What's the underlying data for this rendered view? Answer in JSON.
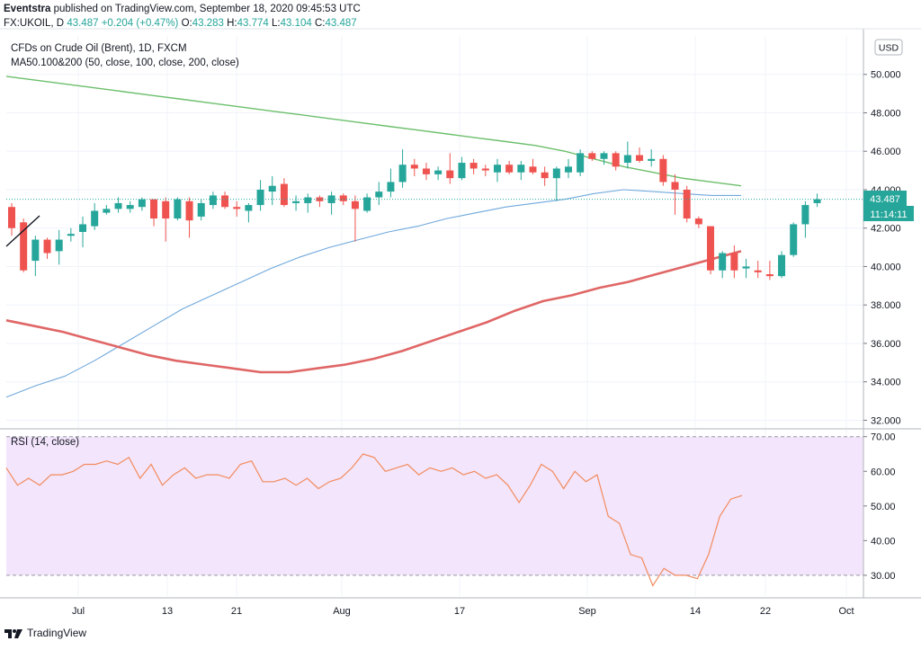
{
  "header": {
    "publisher": "Eventstra",
    "published_line": "published on TradingView.com, September 18, 2020 09:45:53 UTC",
    "symbol": "FX:UKOIL, D",
    "close_value": "43.487",
    "change": "+0.204 (+0.47%)",
    "open_label": "O:",
    "open": "43.283",
    "high_label": "H:",
    "high": "43.774",
    "low_label": "L:",
    "low": "43.104",
    "close_label": "C:",
    "close": "43.487"
  },
  "legend": {
    "series_title": "CFDs on Crude Oil (Brent), 1D, FXCM",
    "ma_title": "MA50.100&200 (50, close, 100, close, 200, close)",
    "rsi_title": "RSI (14, close)",
    "currency": "USD"
  },
  "price_tag": {
    "value": "43.487",
    "timer": "11:14:11"
  },
  "footer": {
    "brand": "TradingView"
  },
  "colors": {
    "up": "#26a69a",
    "down": "#ef5350",
    "ma50": "#6fa8dc",
    "ma100": "#6cbf6c",
    "ma200": "#e06666",
    "rsi": "#f28b5e",
    "rsi_band": "#f3e5fb"
  },
  "chart_data": [
    {
      "type": "candlestick",
      "title": "CFDs on Crude Oil (Brent), 1D, FXCM",
      "ylim": [
        31.6,
        52.0
      ],
      "y_ticks": [
        "32.000",
        "34.000",
        "36.000",
        "38.000",
        "40.000",
        "42.000",
        "44.000",
        "46.000",
        "48.000",
        "50.000"
      ],
      "x_tick_labels": [
        "Jul",
        "13",
        "21",
        "Aug",
        "17",
        "Sep",
        "14",
        "22",
        "Oct"
      ],
      "candles": [
        {
          "o": 43.1,
          "h": 43.3,
          "l": 41.6,
          "c": 42.0
        },
        {
          "o": 42.3,
          "h": 42.5,
          "l": 39.7,
          "c": 39.8
        },
        {
          "o": 40.3,
          "h": 41.6,
          "l": 39.5,
          "c": 41.4
        },
        {
          "o": 41.4,
          "h": 41.5,
          "l": 40.4,
          "c": 40.7
        },
        {
          "o": 40.8,
          "h": 41.9,
          "l": 40.1,
          "c": 41.4
        },
        {
          "o": 41.6,
          "h": 42.0,
          "l": 41.3,
          "c": 41.7
        },
        {
          "o": 41.8,
          "h": 42.6,
          "l": 41.0,
          "c": 42.2
        },
        {
          "o": 42.1,
          "h": 43.3,
          "l": 41.9,
          "c": 42.9
        },
        {
          "o": 42.8,
          "h": 43.2,
          "l": 42.7,
          "c": 43.0
        },
        {
          "o": 43.0,
          "h": 43.6,
          "l": 42.8,
          "c": 43.3
        },
        {
          "o": 43.0,
          "h": 43.4,
          "l": 42.8,
          "c": 43.2
        },
        {
          "o": 43.1,
          "h": 43.6,
          "l": 42.9,
          "c": 43.5
        },
        {
          "o": 43.5,
          "h": 43.5,
          "l": 42.1,
          "c": 42.5
        },
        {
          "o": 43.4,
          "h": 43.6,
          "l": 41.3,
          "c": 42.5
        },
        {
          "o": 42.5,
          "h": 43.6,
          "l": 42.4,
          "c": 43.5
        },
        {
          "o": 43.4,
          "h": 43.6,
          "l": 41.5,
          "c": 42.4
        },
        {
          "o": 42.6,
          "h": 43.5,
          "l": 42.4,
          "c": 43.3
        },
        {
          "o": 43.2,
          "h": 43.9,
          "l": 43.0,
          "c": 43.7
        },
        {
          "o": 43.7,
          "h": 43.9,
          "l": 43.0,
          "c": 43.1
        },
        {
          "o": 43.1,
          "h": 43.4,
          "l": 42.6,
          "c": 43.0
        },
        {
          "o": 42.9,
          "h": 43.3,
          "l": 42.3,
          "c": 43.2
        },
        {
          "o": 43.2,
          "h": 44.5,
          "l": 42.9,
          "c": 44.0
        },
        {
          "o": 43.9,
          "h": 44.7,
          "l": 43.2,
          "c": 44.2
        },
        {
          "o": 44.3,
          "h": 44.6,
          "l": 43.1,
          "c": 43.2
        },
        {
          "o": 43.3,
          "h": 43.7,
          "l": 42.9,
          "c": 43.4
        },
        {
          "o": 43.3,
          "h": 43.8,
          "l": 42.8,
          "c": 43.6
        },
        {
          "o": 43.6,
          "h": 43.7,
          "l": 43.1,
          "c": 43.4
        },
        {
          "o": 43.3,
          "h": 43.9,
          "l": 42.7,
          "c": 43.7
        },
        {
          "o": 43.7,
          "h": 43.8,
          "l": 43.2,
          "c": 43.4
        },
        {
          "o": 43.4,
          "h": 43.7,
          "l": 41.3,
          "c": 43.0
        },
        {
          "o": 42.9,
          "h": 43.8,
          "l": 42.8,
          "c": 43.6
        },
        {
          "o": 43.6,
          "h": 44.4,
          "l": 43.2,
          "c": 43.9
        },
        {
          "o": 43.9,
          "h": 45.1,
          "l": 43.6,
          "c": 44.4
        },
        {
          "o": 44.4,
          "h": 46.1,
          "l": 44.1,
          "c": 45.3
        },
        {
          "o": 45.3,
          "h": 45.6,
          "l": 44.7,
          "c": 45.1
        },
        {
          "o": 45.1,
          "h": 45.4,
          "l": 44.5,
          "c": 44.8
        },
        {
          "o": 44.8,
          "h": 45.2,
          "l": 44.5,
          "c": 45.0
        },
        {
          "o": 45.0,
          "h": 45.9,
          "l": 44.3,
          "c": 44.6
        },
        {
          "o": 44.6,
          "h": 45.7,
          "l": 44.5,
          "c": 45.4
        },
        {
          "o": 45.4,
          "h": 45.6,
          "l": 44.8,
          "c": 45.1
        },
        {
          "o": 45.1,
          "h": 45.3,
          "l": 44.7,
          "c": 45.0
        },
        {
          "o": 44.9,
          "h": 45.6,
          "l": 44.4,
          "c": 45.3
        },
        {
          "o": 45.3,
          "h": 45.5,
          "l": 44.8,
          "c": 44.9
        },
        {
          "o": 44.9,
          "h": 45.5,
          "l": 44.5,
          "c": 45.3
        },
        {
          "o": 45.2,
          "h": 45.6,
          "l": 44.8,
          "c": 44.9
        },
        {
          "o": 44.9,
          "h": 45.2,
          "l": 44.2,
          "c": 44.6
        },
        {
          "o": 44.6,
          "h": 45.2,
          "l": 43.4,
          "c": 45.1
        },
        {
          "o": 44.9,
          "h": 45.6,
          "l": 44.6,
          "c": 45.2
        },
        {
          "o": 44.9,
          "h": 46.1,
          "l": 44.7,
          "c": 45.9
        },
        {
          "o": 45.9,
          "h": 46.0,
          "l": 45.5,
          "c": 45.6
        },
        {
          "o": 45.6,
          "h": 46.0,
          "l": 45.3,
          "c": 45.9
        },
        {
          "o": 45.9,
          "h": 46.0,
          "l": 45.0,
          "c": 45.2
        },
        {
          "o": 45.4,
          "h": 46.5,
          "l": 45.1,
          "c": 45.8
        },
        {
          "o": 45.8,
          "h": 46.2,
          "l": 45.4,
          "c": 45.5
        },
        {
          "o": 45.5,
          "h": 46.1,
          "l": 45.2,
          "c": 45.6
        },
        {
          "o": 45.6,
          "h": 45.8,
          "l": 44.2,
          "c": 44.4
        },
        {
          "o": 44.4,
          "h": 44.8,
          "l": 42.7,
          "c": 44.0
        },
        {
          "o": 44.0,
          "h": 44.2,
          "l": 42.3,
          "c": 42.5
        },
        {
          "o": 42.5,
          "h": 42.6,
          "l": 42.0,
          "c": 42.2
        },
        {
          "o": 42.1,
          "h": 42.1,
          "l": 39.6,
          "c": 39.8
        },
        {
          "o": 39.8,
          "h": 40.8,
          "l": 39.4,
          "c": 40.7
        },
        {
          "o": 40.7,
          "h": 41.1,
          "l": 39.4,
          "c": 39.8
        },
        {
          "o": 39.9,
          "h": 40.4,
          "l": 39.4,
          "c": 40.0
        },
        {
          "o": 39.8,
          "h": 40.3,
          "l": 39.4,
          "c": 39.7
        },
        {
          "o": 39.6,
          "h": 40.3,
          "l": 39.3,
          "c": 39.5
        },
        {
          "o": 39.5,
          "h": 40.8,
          "l": 39.4,
          "c": 40.6
        },
        {
          "o": 40.6,
          "h": 42.3,
          "l": 40.5,
          "c": 42.2
        },
        {
          "o": 42.2,
          "h": 43.4,
          "l": 41.5,
          "c": 43.2
        },
        {
          "o": 43.3,
          "h": 43.8,
          "l": 43.1,
          "c": 43.5
        }
      ],
      "series": [
        {
          "values": [
            49.9,
            49.7,
            49.5,
            49.3,
            49.1,
            48.9,
            48.7,
            48.5,
            48.3,
            48.1,
            47.9,
            47.7,
            47.5,
            47.3,
            47.1,
            46.9,
            46.7,
            46.5,
            46.3,
            46.0,
            45.6,
            45.2,
            44.9,
            44.6,
            44.4,
            44.2
          ]
        },
        {
          "values": [
            33.2,
            33.8,
            34.3,
            35.1,
            36.0,
            36.9,
            37.8,
            38.5,
            39.2,
            39.9,
            40.5,
            41.0,
            41.4,
            41.8,
            42.1,
            42.5,
            42.8,
            43.1,
            43.3,
            43.5,
            43.8,
            44.0,
            43.9,
            43.8,
            43.7,
            43.7
          ]
        },
        {
          "values": [
            37.2,
            36.9,
            36.6,
            36.2,
            35.8,
            35.4,
            35.1,
            34.9,
            34.7,
            34.5,
            34.5,
            34.7,
            34.9,
            35.2,
            35.6,
            36.1,
            36.6,
            37.1,
            37.7,
            38.2,
            38.5,
            38.9,
            39.2,
            39.6,
            40.0,
            40.4,
            40.8
          ]
        }
      ]
    },
    {
      "type": "line",
      "title": "RSI (14, close)",
      "ylim": [
        24,
        72
      ],
      "y_ticks": [
        "30.00",
        "40.00",
        "50.00",
        "60.00",
        "70.00"
      ],
      "band": [
        30,
        70
      ],
      "values": [
        61,
        56,
        58,
        56,
        59,
        59,
        60,
        62,
        62,
        63,
        62,
        64,
        58,
        62,
        56,
        59,
        61,
        58,
        59,
        59,
        58,
        62,
        63,
        57,
        57,
        58,
        56,
        58,
        55,
        57,
        58,
        61,
        65,
        64,
        60,
        61,
        62,
        59,
        61,
        60,
        61,
        59,
        60,
        58,
        59,
        56,
        51,
        56,
        62,
        60,
        55,
        60,
        57,
        59,
        47,
        45,
        36,
        35,
        27,
        32,
        30,
        30,
        29,
        36,
        47,
        52,
        53
      ]
    }
  ]
}
